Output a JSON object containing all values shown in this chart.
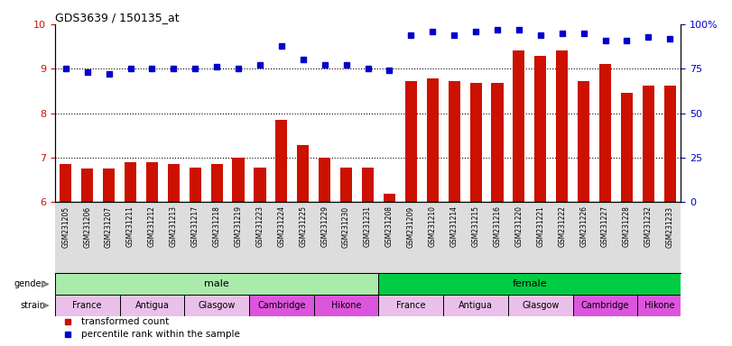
{
  "title": "GDS3639 / 150135_at",
  "samples": [
    "GSM231205",
    "GSM231206",
    "GSM231207",
    "GSM231211",
    "GSM231212",
    "GSM231213",
    "GSM231217",
    "GSM231218",
    "GSM231219",
    "GSM231223",
    "GSM231224",
    "GSM231225",
    "GSM231229",
    "GSM231230",
    "GSM231231",
    "GSM231208",
    "GSM231209",
    "GSM231210",
    "GSM231214",
    "GSM231215",
    "GSM231216",
    "GSM231220",
    "GSM231221",
    "GSM231222",
    "GSM231226",
    "GSM231227",
    "GSM231228",
    "GSM231232",
    "GSM231233"
  ],
  "bar_values": [
    6.85,
    6.75,
    6.75,
    6.9,
    6.9,
    6.85,
    6.78,
    6.85,
    7.0,
    6.78,
    7.85,
    7.28,
    7.0,
    6.78,
    6.78,
    6.2,
    8.72,
    8.78,
    8.72,
    8.68,
    8.68,
    9.42,
    9.28,
    9.42,
    8.72,
    9.1,
    8.45,
    8.62,
    8.62
  ],
  "dot_values_pct": [
    75,
    73,
    72,
    75,
    75,
    75,
    75,
    76,
    75,
    77,
    88,
    80,
    77,
    77,
    75,
    74,
    94,
    96,
    94,
    96,
    97,
    97,
    94,
    95,
    95,
    91,
    91,
    93,
    92
  ],
  "ylim": [
    6,
    10
  ],
  "yticks_left": [
    6,
    7,
    8,
    9,
    10
  ],
  "yticks_right": [
    0,
    25,
    50,
    75,
    100
  ],
  "bar_color": "#CC1100",
  "dot_color": "#0000CC",
  "gender_groups": [
    {
      "label": "male",
      "start": 0,
      "end": 14,
      "color": "#AAEAAA"
    },
    {
      "label": "female",
      "start": 15,
      "end": 28,
      "color": "#00CC44"
    }
  ],
  "strain_groups": [
    {
      "label": "France",
      "start": 0,
      "end": 2,
      "color": "#EAC0EA"
    },
    {
      "label": "Antigua",
      "start": 3,
      "end": 5,
      "color": "#EAC0EA"
    },
    {
      "label": "Glasgow",
      "start": 6,
      "end": 8,
      "color": "#EAC0EA"
    },
    {
      "label": "Cambridge",
      "start": 9,
      "end": 11,
      "color": "#DD55DD"
    },
    {
      "label": "Hikone",
      "start": 12,
      "end": 14,
      "color": "#DD55DD"
    },
    {
      "label": "France",
      "start": 15,
      "end": 17,
      "color": "#EAC0EA"
    },
    {
      "label": "Antigua",
      "start": 18,
      "end": 20,
      "color": "#EAC0EA"
    },
    {
      "label": "Glasgow",
      "start": 21,
      "end": 23,
      "color": "#EAC0EA"
    },
    {
      "label": "Cambridge",
      "start": 24,
      "end": 26,
      "color": "#DD55DD"
    },
    {
      "label": "Hikone",
      "start": 27,
      "end": 28,
      "color": "#DD55DD"
    }
  ]
}
